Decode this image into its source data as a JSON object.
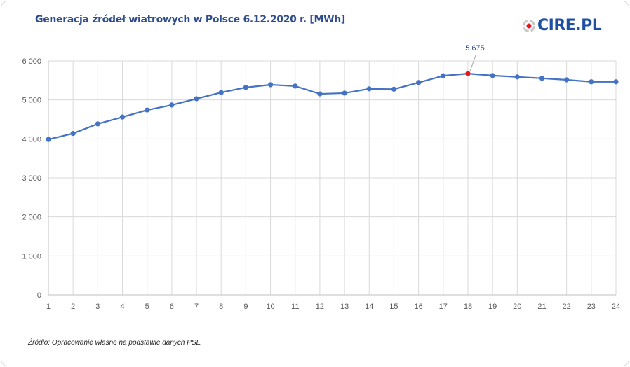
{
  "chart_data": {
    "type": "line",
    "title": "Generacja źródeł wiatrowych w Polsce 6.12.2020 r. [MWh]",
    "xlabel": "",
    "ylabel": "",
    "x": [
      1,
      2,
      3,
      4,
      5,
      6,
      7,
      8,
      9,
      10,
      11,
      12,
      13,
      14,
      15,
      16,
      17,
      18,
      19,
      20,
      21,
      22,
      23,
      24
    ],
    "series": [
      {
        "name": "Generacja",
        "values": [
          3985,
          4140,
          4385,
          4560,
          4740,
          4870,
          5030,
          5190,
          5320,
          5390,
          5355,
          5155,
          5175,
          5285,
          5275,
          5445,
          5620,
          5675,
          5625,
          5590,
          5555,
          5515,
          5465,
          5465
        ]
      }
    ],
    "ylim": [
      0,
      6000
    ],
    "yticks": [
      0,
      1000,
      2000,
      3000,
      4000,
      5000,
      6000
    ],
    "ytick_labels": [
      "0",
      "1 000",
      "2 000",
      "3 000",
      "4 000",
      "5 000",
      "6 000"
    ],
    "grid": true,
    "annotation": {
      "x": 18,
      "label": "5 675"
    },
    "colors": {
      "line": "#4472c4",
      "highlight": "#e8141c",
      "label": "#2f4d8c"
    }
  },
  "logo": {
    "text": "CIRE.PL"
  },
  "source": "Źródło: Opracowanie własne na podstawie danych PSE"
}
